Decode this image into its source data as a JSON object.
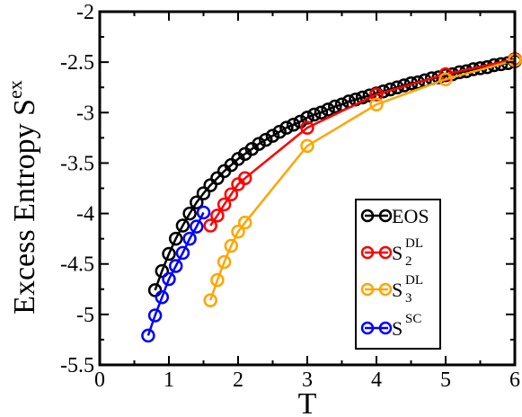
{
  "chart_data": {
    "type": "line",
    "xlabel": "T",
    "ylabel_main": "Excess Entropy S",
    "ylabel_sup": "ex",
    "xlim": [
      0,
      6
    ],
    "ylim": [
      -5.5,
      -2
    ],
    "x_ticks": [
      0,
      1,
      2,
      3,
      4,
      5,
      6
    ],
    "y_ticks": [
      -5.5,
      -5,
      -4.5,
      -4,
      -3.5,
      -3,
      -2.5,
      -2
    ],
    "x_tick_labels": [
      "0",
      "1",
      "2",
      "3",
      "4",
      "5",
      "6"
    ],
    "y_tick_labels": [
      "-5.5",
      "-5",
      "-4.5",
      "-4",
      "-3.5",
      "-3",
      "-2.5",
      "-2"
    ],
    "grid": false,
    "legend_position": "lower-right",
    "series": [
      {
        "name": "EOS",
        "legend_base": "EOS",
        "legend_sup": "",
        "legend_sub": "",
        "color": "#000000",
        "x": [
          0.8,
          0.9,
          1.0,
          1.1,
          1.2,
          1.3,
          1.4,
          1.5,
          1.6,
          1.7,
          1.8,
          1.9,
          2.0,
          2.1,
          2.2,
          2.3,
          2.4,
          2.5,
          2.6,
          2.7,
          2.8,
          2.9,
          3.0,
          3.1,
          3.2,
          3.3,
          3.4,
          3.5,
          3.6,
          3.7,
          3.8,
          3.9,
          4.0,
          4.1,
          4.2,
          4.3,
          4.4,
          4.5,
          4.6,
          4.7,
          4.8,
          4.9,
          5.0,
          5.1,
          5.2,
          5.3,
          5.4,
          5.5,
          5.6,
          5.7,
          5.8,
          5.9,
          6.0
        ],
        "y": [
          -4.76,
          -4.57,
          -4.4,
          -4.25,
          -4.12,
          -4.0,
          -3.89,
          -3.8,
          -3.72,
          -3.65,
          -3.58,
          -3.52,
          -3.46,
          -3.41,
          -3.36,
          -3.31,
          -3.27,
          -3.23,
          -3.19,
          -3.15,
          -3.12,
          -3.09,
          -3.05,
          -3.02,
          -3.0,
          -2.97,
          -2.94,
          -2.92,
          -2.89,
          -2.87,
          -2.85,
          -2.83,
          -2.81,
          -2.79,
          -2.77,
          -2.75,
          -2.73,
          -2.71,
          -2.7,
          -2.68,
          -2.66,
          -2.65,
          -2.63,
          -2.62,
          -2.6,
          -2.59,
          -2.57,
          -2.56,
          -2.55,
          -2.53,
          -2.52,
          -2.51,
          -2.49
        ]
      },
      {
        "name": "S2DL",
        "legend_base": "S",
        "legend_sup": "DL",
        "legend_sub": "2",
        "color": "#ff0000",
        "x": [
          1.6,
          1.7,
          1.8,
          1.9,
          2.0,
          2.1,
          3.0,
          4.0,
          5.0,
          6.0
        ],
        "y": [
          -4.12,
          -4.02,
          -3.91,
          -3.81,
          -3.71,
          -3.65,
          -3.15,
          -2.82,
          -2.62,
          -2.47
        ]
      },
      {
        "name": "S3DL",
        "legend_base": "S",
        "legend_sup": "DL",
        "legend_sub": "3",
        "color": "#ffa500",
        "x": [
          1.6,
          1.7,
          1.8,
          1.9,
          2.0,
          2.1,
          3.0,
          4.0,
          5.0,
          6.0
        ],
        "y": [
          -4.86,
          -4.66,
          -4.48,
          -4.32,
          -4.18,
          -4.09,
          -3.33,
          -2.92,
          -2.67,
          -2.48
        ]
      },
      {
        "name": "SSC",
        "legend_base": "S",
        "legend_sup": "SC",
        "legend_sub": "",
        "color": "#0000ff",
        "x": [
          0.7,
          0.8,
          0.9,
          1.0,
          1.1,
          1.2,
          1.3,
          1.4,
          1.5
        ],
        "y": [
          -5.21,
          -5.01,
          -4.83,
          -4.65,
          -4.52,
          -4.39,
          -4.25,
          -4.13,
          -3.99
        ]
      }
    ]
  }
}
